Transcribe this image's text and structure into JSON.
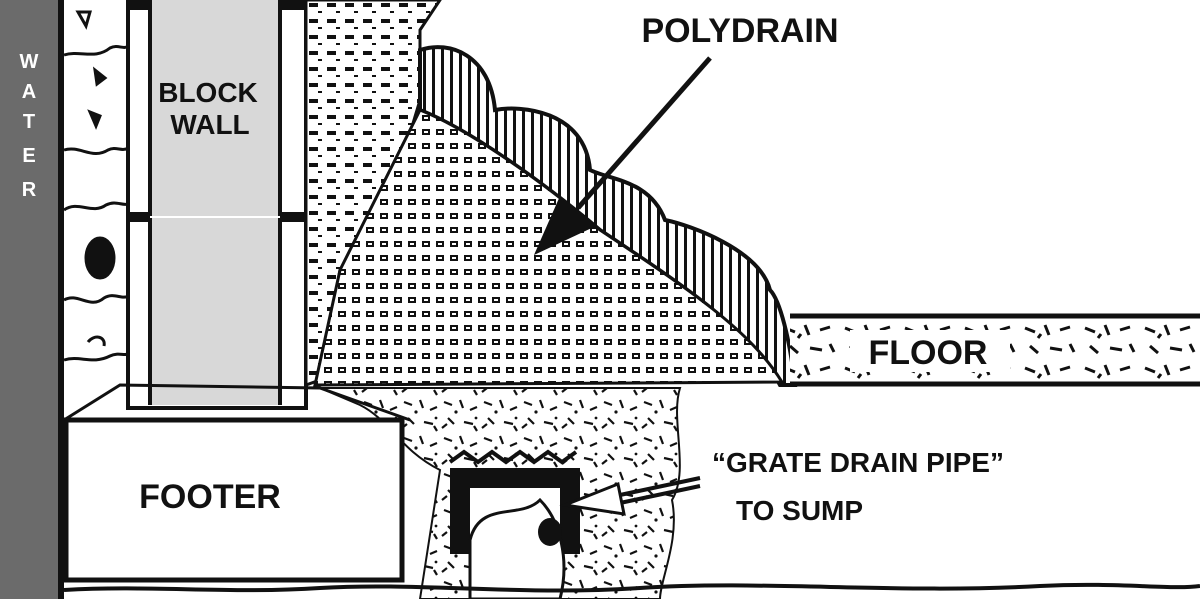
{
  "labels": {
    "water": [
      "W",
      "A",
      "T",
      "E",
      "R"
    ],
    "block_wall": [
      "BLOCK",
      "WALL"
    ],
    "polydrain": "POLYDRAIN",
    "floor": "FLOOR",
    "footer": "FOOTER",
    "grate_drain": [
      "“GRATE DRAIN PIPE”",
      "TO SUMP"
    ]
  },
  "colors": {
    "ink": "#111111",
    "water_bar": "#6b6b6b",
    "block": "#d8d8d8",
    "background": "#ffffff"
  }
}
